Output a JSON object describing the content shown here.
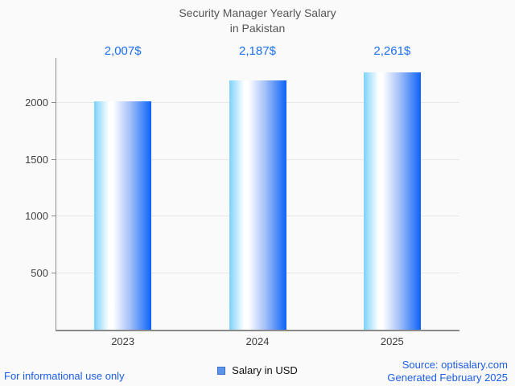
{
  "title": {
    "line1": "Security Manager Yearly Salary",
    "line2": "in Pakistan"
  },
  "chart_data": {
    "type": "bar",
    "title": "Security Manager Yearly Salary in Pakistan",
    "categories": [
      "2023",
      "2024",
      "2025"
    ],
    "values": [
      2007,
      2187,
      2261
    ],
    "value_labels": [
      "2,007$",
      "2,187$",
      "2,261$"
    ],
    "series": [
      {
        "name": "Salary in USD",
        "values": [
          2007,
          2187,
          2261
        ]
      }
    ],
    "xlabel": "",
    "ylabel": "",
    "ylim": [
      0,
      2386
    ],
    "yticks": [
      500,
      1000,
      1500,
      2000
    ],
    "grid": true,
    "legend_position": "bottom",
    "bar_gradient": [
      "#7dd2fb",
      "#ffffff",
      "#0e63f8"
    ]
  },
  "legend": {
    "label": "Salary in USD",
    "swatch_fill": "#5b94e8",
    "swatch_border": "#3a6fc4"
  },
  "footer": {
    "left": "For informational use only",
    "source": "Source: optisalary.com",
    "generated": "Generated February 2025"
  },
  "colors": {
    "background": "#fafafa",
    "title_text": "#555555",
    "axis_line": "#8a8a8a",
    "gridline": "#e7e7e7",
    "tick_text": "#424242",
    "value_label_text": "#1b6ef3",
    "footer_text": "#1c5de8"
  }
}
